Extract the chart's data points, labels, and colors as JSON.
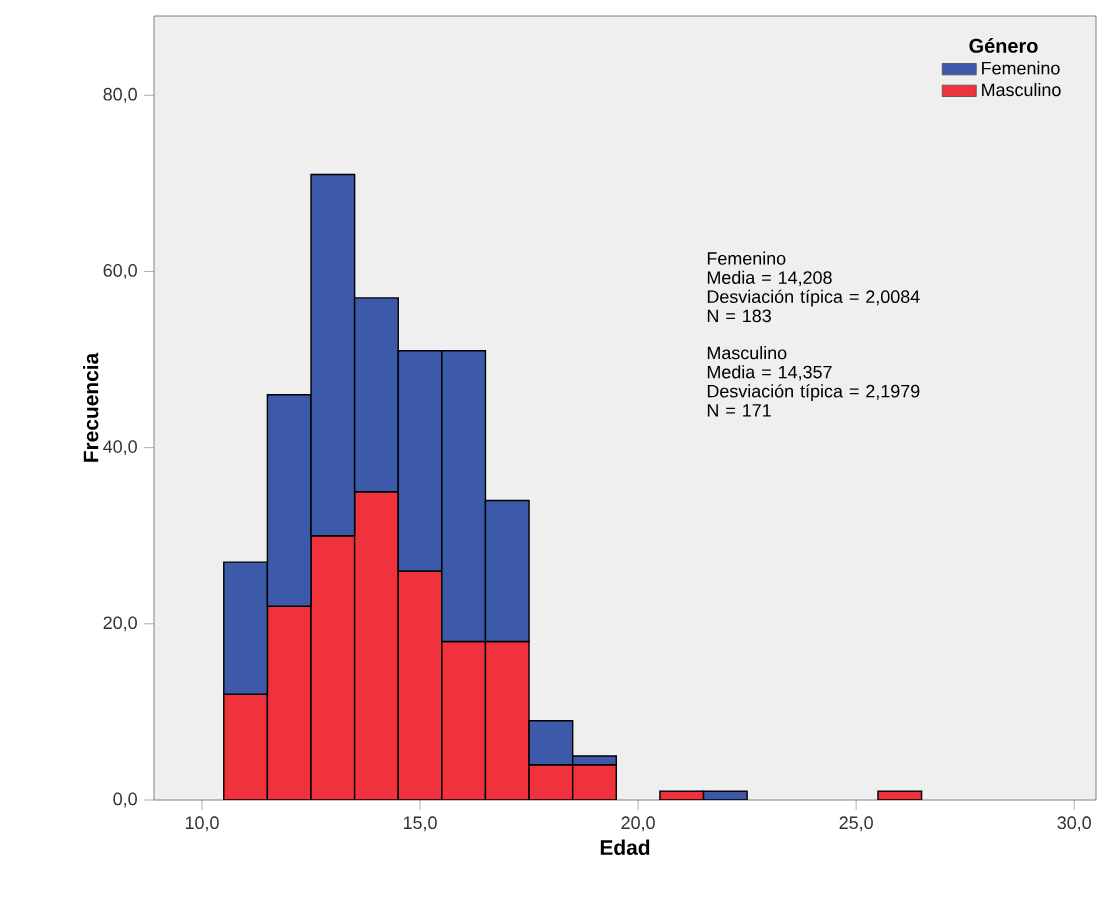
{
  "chart_data": {
    "type": "bar",
    "stacked": true,
    "xlabel": "Edad",
    "ylabel": "Frecuencia",
    "legend_title": "Género",
    "legend": "top right",
    "grid": false,
    "x": [
      11,
      12,
      13,
      14,
      15,
      16,
      17,
      18,
      19,
      20,
      21,
      22,
      23,
      24,
      25,
      26
    ],
    "series": [
      {
        "name": "Masculino",
        "color": "#f0323c",
        "values": [
          12,
          22,
          30,
          35,
          26,
          18,
          18,
          4,
          4,
          0,
          1,
          0,
          0,
          0,
          0,
          1
        ]
      },
      {
        "name": "Femenino",
        "color": "#3d5aaa",
        "values": [
          15,
          24,
          41,
          22,
          25,
          33,
          16,
          5,
          1,
          0,
          0,
          1,
          0,
          0,
          0,
          0
        ]
      }
    ],
    "xlim": [
      8.9,
      30.5
    ],
    "ylim": [
      0,
      89
    ],
    "xticks": [
      {
        "value": 10,
        "label": "10,0"
      },
      {
        "value": 15,
        "label": "15,0"
      },
      {
        "value": 20,
        "label": "20,0"
      },
      {
        "value": 25,
        "label": "25,0"
      },
      {
        "value": 30,
        "label": "30,0"
      }
    ],
    "yticks": [
      {
        "value": 0,
        "label": "0,0"
      },
      {
        "value": 20,
        "label": "20,0"
      },
      {
        "value": 40,
        "label": "40,0"
      },
      {
        "value": 60,
        "label": "60,0"
      },
      {
        "value": 80,
        "label": "80,0"
      }
    ],
    "annotations": [
      "Femenino",
      "Media = 14,208",
      "Desviación típica = 2,0084",
      "N = 183",
      "Masculino",
      "Media = 14,357",
      "Desviación típica = 2,1979",
      "N = 171"
    ]
  }
}
